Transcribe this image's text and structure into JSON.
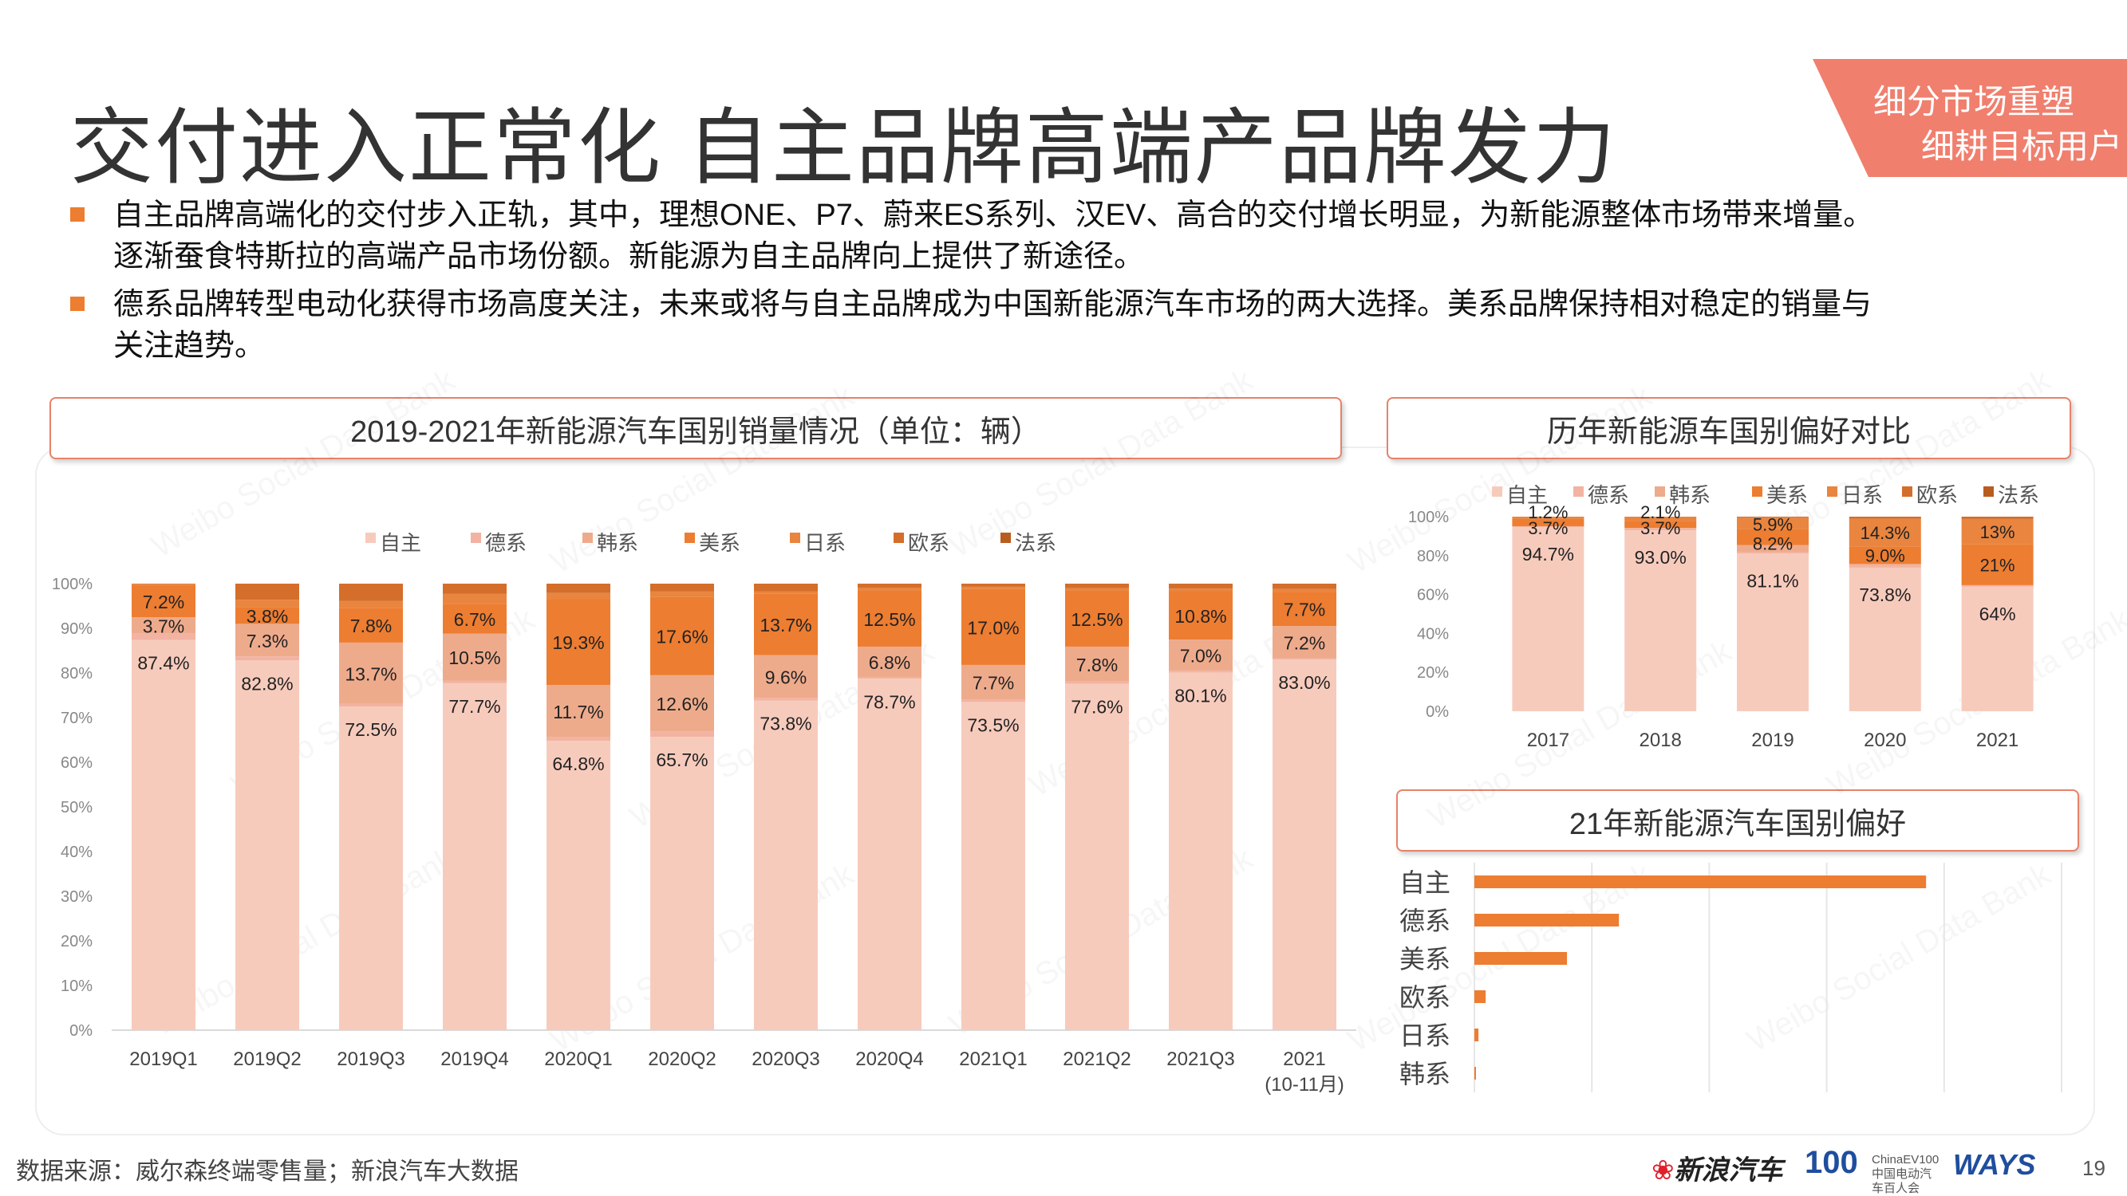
{
  "title": "交付进入正常化 自主品牌高端产品牌发力",
  "ribbon": {
    "line1": "细分市场重塑",
    "line2": "细耕目标用户",
    "color": "#f07f6e"
  },
  "bullets": [
    {
      "lines": [
        "自主品牌高端化的交付步入正轨，其中，理想ONE、P7、蔚来ES系列、汉EV、高合的交付增长明显，为新能源整体市场带来增量。",
        "逐渐蚕食特斯拉的高端产品市场份额。新能源为自主品牌向上提供了新途径。"
      ]
    },
    {
      "lines": [
        "德系品牌转型电动化获得市场高度关注，未来或将与自主品牌成为中国新能源汽车市场的两大选择。美系品牌保持相对稳定的销量与",
        "关注趋势。"
      ]
    }
  ],
  "source": "数据来源：威尔森终端零售量；新浪汽车大数据",
  "watermark": "Weibo Social Data Bank",
  "logos": {
    "sina_mark": "❀",
    "sina_text": "新浪汽车",
    "ev100": "100",
    "ev100_sub": "ChinaEV100 中国电动汽车百人会",
    "ways": "WAYS"
  },
  "page_number": "19",
  "colors": {
    "自主": "#f7cbbc",
    "德系": "#f3b3a2",
    "韩系": "#eeab8c",
    "美系": "#ed7d31",
    "日系": "#e9853f",
    "欧系": "#d46e2a",
    "法系": "#b95d1f",
    "accent": "#ed7d31"
  },
  "chart_data": [
    {
      "type": "bar",
      "stacked": true,
      "title": "2019-2021年新能源汽车国别销量情况（单位：辆）",
      "categories": [
        "2019Q1",
        "2019Q2",
        "2019Q3",
        "2019Q4",
        "2020Q1",
        "2020Q2",
        "2020Q3",
        "2020Q4",
        "2021Q1",
        "2021Q2",
        "2021Q3",
        "2021"
      ],
      "category_sublabels": [
        "",
        "",
        "",
        "",
        "",
        "",
        "",
        "",
        "",
        "",
        "",
        "(10-11月)"
      ],
      "legend": [
        "自主",
        "德系",
        "韩系",
        "美系",
        "日系",
        "欧系",
        "法系"
      ],
      "legend_position": "top",
      "ylim": [
        0,
        100
      ],
      "yticks": [
        "0%",
        "10%",
        "20%",
        "30%",
        "40%",
        "50%",
        "60%",
        "70%",
        "80%",
        "90%",
        "100%"
      ],
      "series": [
        {
          "name": "自主",
          "values": [
            87.4,
            82.8,
            72.5,
            77.7,
            64.8,
            65.7,
            73.8,
            78.7,
            73.5,
            77.6,
            80.1,
            83.0
          ]
        },
        {
          "name": "德系",
          "values": [
            1.4,
            0.9,
            0.6,
            0.6,
            0.8,
            1.2,
            0.6,
            0.4,
            0.6,
            0.5,
            0.4,
            0.3
          ]
        },
        {
          "name": "韩系",
          "values": [
            3.7,
            7.3,
            13.7,
            10.5,
            11.7,
            12.6,
            9.6,
            6.8,
            7.7,
            7.8,
            7.0,
            7.2
          ]
        },
        {
          "name": "美系",
          "values": [
            7.2,
            3.8,
            7.8,
            6.7,
            19.3,
            17.6,
            13.7,
            12.5,
            17.0,
            12.5,
            10.8,
            7.7
          ]
        },
        {
          "name": "日系",
          "values": [
            0.2,
            1.6,
            1.5,
            2.2,
            1.3,
            1.2,
            0.6,
            0.7,
            0.5,
            0.6,
            0.6,
            0.6
          ]
        },
        {
          "name": "欧系",
          "values": [
            0.1,
            3.6,
            3.9,
            2.3,
            2.1,
            1.7,
            1.7,
            0.9,
            0.7,
            1.0,
            1.1,
            1.2
          ]
        },
        {
          "name": "法系",
          "values": [
            0.0,
            0.0,
            0.0,
            0.0,
            0.0,
            0.0,
            0.0,
            0.0,
            0.0,
            0.0,
            0.0,
            0.0
          ]
        }
      ],
      "data_labels": [
        {
          "series": "美系",
          "labels": [
            "7.2%",
            "3.8%",
            "7.8%",
            "6.7%",
            "19.3%",
            "17.6%",
            "13.7%",
            "12.5%",
            "17.0%",
            "12.5%",
            "10.8%",
            "7.7%"
          ]
        },
        {
          "series": "韩系",
          "labels": [
            "3.7%",
            "7.3%",
            "13.7%",
            "10.5%",
            "11.7%",
            "12.6%",
            "9.6%",
            "6.8%",
            "7.7%",
            "7.8%",
            "7.0%",
            "7.2%"
          ]
        },
        {
          "series": "自主",
          "labels": [
            "87.4%",
            "82.8%",
            "72.5%",
            "77.7%",
            "64.8%",
            "65.7%",
            "73.8%",
            "78.7%",
            "73.5%",
            "77.6%",
            "80.1%",
            "83.0%"
          ]
        }
      ]
    },
    {
      "type": "bar",
      "stacked": true,
      "title": "历年新能源车国别偏好对比",
      "categories": [
        "2017",
        "2018",
        "2019",
        "2020",
        "2021"
      ],
      "legend": [
        "自主",
        "德系",
        "韩系",
        "美系",
        "日系",
        "欧系",
        "法系"
      ],
      "legend_position": "top",
      "ylim": [
        0,
        100
      ],
      "yticks": [
        "0%",
        "20%",
        "40%",
        "60%",
        "80%",
        "100%"
      ],
      "series": [
        {
          "name": "自主",
          "values": [
            94.7,
            93.0,
            81.1,
            73.8,
            64.0
          ]
        },
        {
          "name": "德系",
          "values": [
            0.2,
            1.0,
            0.6,
            1.4,
            0.5
          ]
        },
        {
          "name": "韩系",
          "values": [
            0.2,
            0.2,
            3.7,
            0.5,
            0.3
          ]
        },
        {
          "name": "美系",
          "values": [
            3.7,
            3.7,
            8.2,
            9.0,
            21.0
          ]
        },
        {
          "name": "日系",
          "values": [
            1.2,
            2.1,
            5.9,
            14.3,
            13.0
          ]
        },
        {
          "name": "欧系",
          "values": [
            0.0,
            0.0,
            0.5,
            1.0,
            1.2
          ]
        },
        {
          "name": "法系",
          "values": [
            0.0,
            0.0,
            0.0,
            0.0,
            0.0
          ]
        }
      ],
      "data_labels": [
        {
          "series": "日系",
          "labels": [
            "1.2%",
            "2.1%",
            "5.9%",
            "14.3%",
            "13%"
          ]
        },
        {
          "series": "美系",
          "labels": [
            "3.7%",
            "3.7%",
            "8.2%",
            "9.0%",
            "21%"
          ]
        },
        {
          "series": "自主",
          "labels": [
            "94.7%",
            "93.0%",
            "81.1%",
            "73.8%",
            "64%"
          ]
        }
      ]
    },
    {
      "type": "bar",
      "orientation": "horizontal",
      "title": "21年新能源汽车国别偏好",
      "categories": [
        "自主",
        "德系",
        "美系",
        "欧系",
        "日系",
        "韩系"
      ],
      "values": [
        100,
        32,
        20.5,
        2.5,
        0.9,
        0.2
      ],
      "xlim": [
        0,
        130
      ],
      "grid": true
    }
  ]
}
